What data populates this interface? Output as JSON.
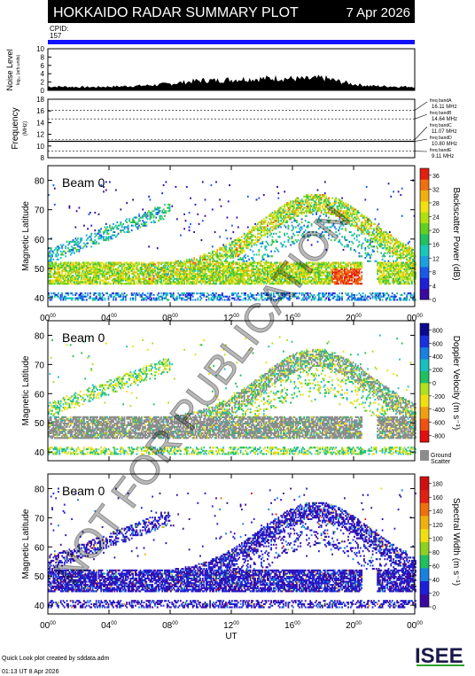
{
  "header": {
    "title": "HOKKAIDO RADAR SUMMARY PLOT",
    "date": "7 Apr 2026",
    "cpid_label": "CPID:",
    "cpid_value": "157"
  },
  "colors": {
    "header_bg": "#000000",
    "cpid_bar": "#1010ff",
    "ground_scatter": "#8c8c8c"
  },
  "noise_panel": {
    "ylabel": "Noise Level",
    "ylabel_sub": "log₁₀ (arb.units)",
    "ticks": [
      0,
      2,
      4,
      6,
      8,
      10
    ]
  },
  "freq_panel": {
    "ylabel": "Frequency",
    "unit": "(MHz)",
    "ticks": [
      8,
      10,
      12,
      14,
      16,
      18
    ],
    "bands": [
      {
        "label": "freq bandA",
        "value": "16.11 MHz"
      },
      {
        "label": "freq bandB",
        "value": "14.64 MHz"
      },
      {
        "label": "freq bandC",
        "value": "11.07 MHz"
      },
      {
        "label": "freq bandD",
        "value": "10.80 MHz"
      },
      {
        "label": "freq bandE",
        "value": "9.11 MHz"
      }
    ]
  },
  "watermark": "NOT FOR PUBLICATION",
  "footer": {
    "credit": "Quick Look plot created by sddata.adm",
    "timestamp": "01:13 UT  8 Apr 2026",
    "logo_text": "ISEE"
  },
  "chart_data": [
    {
      "type": "area",
      "name": "noise",
      "x": [
        0,
        1,
        2,
        3,
        4,
        5,
        6,
        7,
        8,
        9,
        10,
        11,
        12,
        13,
        14,
        15,
        16,
        17,
        18,
        19,
        20,
        21,
        22,
        23,
        24
      ],
      "values": [
        0.9,
        0.9,
        0.8,
        0.8,
        0.9,
        1.0,
        1.1,
        1.3,
        1.6,
        2.0,
        2.4,
        2.4,
        2.6,
        2.8,
        2.8,
        3.0,
        2.8,
        2.7,
        3.0,
        2.2,
        1.5,
        1.1,
        1.0,
        0.9,
        0.9
      ],
      "ylim": [
        0,
        10
      ]
    },
    {
      "type": "line",
      "name": "frequency",
      "x": [
        0,
        24
      ],
      "values": [
        10.8,
        10.8
      ],
      "ylim": [
        8,
        18
      ]
    },
    {
      "type": "heatmap",
      "title": "Beam  0",
      "ylabel": "Magnetic Latitude",
      "yticks": [
        40,
        50,
        60,
        70,
        80
      ],
      "ylim": [
        37,
        85
      ],
      "xlabel": "UT",
      "xticks": [
        "00",
        "04",
        "08",
        "12",
        "16",
        "20",
        "00"
      ],
      "xlim": [
        0,
        24
      ],
      "colorbar": {
        "label": "Backscatter Power (dB)",
        "ticks": [
          0,
          4,
          8,
          12,
          16,
          20,
          24,
          28,
          32,
          36
        ],
        "range": [
          0,
          38
        ]
      }
    },
    {
      "type": "heatmap",
      "title": "Beam  0",
      "ylabel": "Magnetic Latitude",
      "yticks": [
        40,
        50,
        60,
        70,
        80
      ],
      "ylim": [
        37,
        85
      ],
      "xlim": [
        0,
        24
      ],
      "colorbar": {
        "label": "Doppler Velocity (m s⁻¹)",
        "ticks": [
          800,
          600,
          400,
          200,
          0,
          -200,
          -400,
          -600,
          -800
        ],
        "range": [
          -900,
          900
        ],
        "ground_label": "Ground",
        "ground_label2": "Scatter"
      }
    },
    {
      "type": "heatmap",
      "title": "Beam  0",
      "ylabel": "Magnetic Latitude",
      "yticks": [
        40,
        50,
        60,
        70,
        80
      ],
      "ylim": [
        37,
        85
      ],
      "xlabel": "UT",
      "xticks": [
        "00",
        "04",
        "08",
        "12",
        "16",
        "20",
        "00"
      ],
      "xlim": [
        0,
        24
      ],
      "colorbar": {
        "label": "Spectral Width (m s⁻¹)",
        "ticks": [
          0,
          20,
          40,
          60,
          80,
          100,
          120,
          140,
          160,
          180
        ],
        "range": [
          0,
          190
        ]
      }
    }
  ]
}
